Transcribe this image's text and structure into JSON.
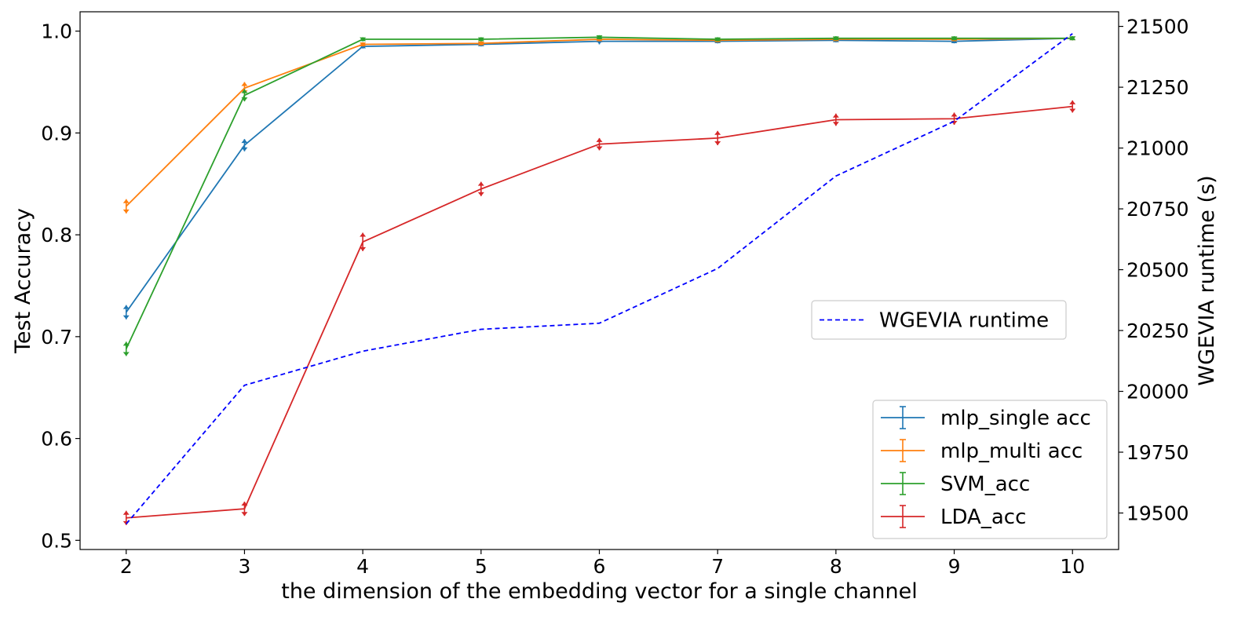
{
  "chart_data": {
    "type": "line",
    "xlabel": "the dimension of the embedding vector for a single channel",
    "ylabel": "Test Accuracy",
    "y2label": "WGEVIA runtime (s)",
    "y2label_color": "#0000ff",
    "x": [
      2,
      3,
      4,
      5,
      6,
      7,
      8,
      9,
      10
    ],
    "xlim": [
      1.61,
      10.39
    ],
    "ylim": [
      0.491,
      1.019
    ],
    "y2lim": [
      19350,
      21560
    ],
    "xticks": [
      2,
      3,
      4,
      5,
      6,
      7,
      8,
      9,
      10
    ],
    "yticks": [
      0.5,
      0.6,
      0.7,
      0.8,
      0.9,
      1.0
    ],
    "ytick_labels": [
      "0.5",
      "0.6",
      "0.7",
      "0.8",
      "0.9",
      "1.0"
    ],
    "y2ticks": [
      19500,
      19750,
      20000,
      20250,
      20500,
      20750,
      21000,
      21250,
      21500
    ],
    "y2tick_labels": [
      "19500",
      "19750",
      "20000",
      "20250",
      "20500",
      "20750",
      "21000",
      "21250",
      "21500"
    ],
    "grid": false,
    "series": [
      {
        "name": "mlp_single acc",
        "color": "#1f77b4",
        "axis": "left",
        "style": "solid-errorbar",
        "values": [
          0.724,
          0.888,
          0.985,
          0.987,
          0.99,
          0.99,
          0.991,
          0.99,
          0.993
        ],
        "errors": [
          0.007,
          0.006,
          0.002,
          0.002,
          0.003,
          0.002,
          0.002,
          0.002,
          0.002
        ]
      },
      {
        "name": "mlp_multi acc",
        "color": "#ff7f0e",
        "axis": "left",
        "style": "solid-errorbar",
        "values": [
          0.828,
          0.944,
          0.987,
          0.988,
          0.992,
          0.991,
          0.992,
          0.992,
          0.993
        ],
        "errors": [
          0.007,
          0.006,
          0.002,
          0.002,
          0.002,
          0.002,
          0.002,
          0.002,
          0.002
        ]
      },
      {
        "name": "SVM_acc",
        "color": "#2ca02c",
        "axis": "left",
        "style": "solid-errorbar",
        "values": [
          0.688,
          0.937,
          0.992,
          0.992,
          0.994,
          0.992,
          0.993,
          0.993,
          0.993
        ],
        "errors": [
          0.007,
          0.006,
          0.002,
          0.002,
          0.002,
          0.002,
          0.002,
          0.002,
          0.002
        ]
      },
      {
        "name": "LDA_acc",
        "color": "#d62728",
        "axis": "left",
        "style": "solid-errorbar",
        "values": [
          0.522,
          0.531,
          0.793,
          0.845,
          0.889,
          0.895,
          0.913,
          0.914,
          0.926
        ],
        "errors": [
          0.007,
          0.007,
          0.009,
          0.007,
          0.006,
          0.007,
          0.006,
          0.006,
          0.006
        ]
      },
      {
        "name": "WGEVIA runtime",
        "color": "#0000ff",
        "axis": "right",
        "style": "dashed",
        "values": [
          19455,
          20025,
          20165,
          20255,
          20280,
          20505,
          20885,
          21110,
          21470
        ]
      }
    ],
    "legends": [
      {
        "placement": "center-right",
        "entries": [
          "WGEVIA runtime"
        ]
      },
      {
        "placement": "lower-right",
        "entries": [
          "mlp_single acc",
          "mlp_multi acc",
          "SVM_acc",
          "LDA_acc"
        ]
      }
    ]
  }
}
